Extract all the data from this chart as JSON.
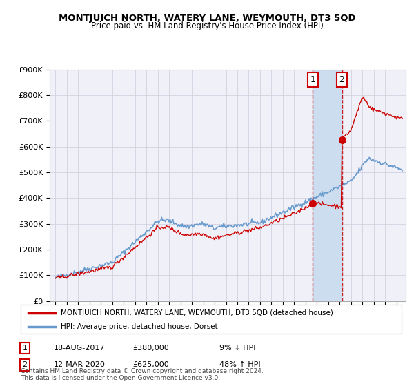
{
  "title": "MONTJUICH NORTH, WATERY LANE, WEYMOUTH, DT3 5QD",
  "subtitle": "Price paid vs. HM Land Registry's House Price Index (HPI)",
  "legend_line1": "MONTJUICH NORTH, WATERY LANE, WEYMOUTH, DT3 5QD (detached house)",
  "legend_line2": "HPI: Average price, detached house, Dorset",
  "annotation1_label": "1",
  "annotation1_date": "18-AUG-2017",
  "annotation1_price": "£380,000",
  "annotation1_pct": "9% ↓ HPI",
  "annotation2_label": "2",
  "annotation2_date": "12-MAR-2020",
  "annotation2_price": "£625,000",
  "annotation2_pct": "48% ↑ HPI",
  "footnote": "Contains HM Land Registry data © Crown copyright and database right 2024.\nThis data is licensed under the Open Government Licence v3.0.",
  "red_color": "#cc0000",
  "blue_color": "#6699cc",
  "background_color": "#ffffff",
  "plot_bg_color": "#f0f0f8",
  "highlight_bg": "#ccddf0",
  "ylim": [
    0,
    900000
  ],
  "yticks": [
    0,
    100000,
    200000,
    300000,
    400000,
    500000,
    600000,
    700000,
    800000,
    900000
  ],
  "sale1_year": 2017.63,
  "sale1_price": 380000,
  "sale2_year": 2020.19,
  "sale2_price": 625000
}
